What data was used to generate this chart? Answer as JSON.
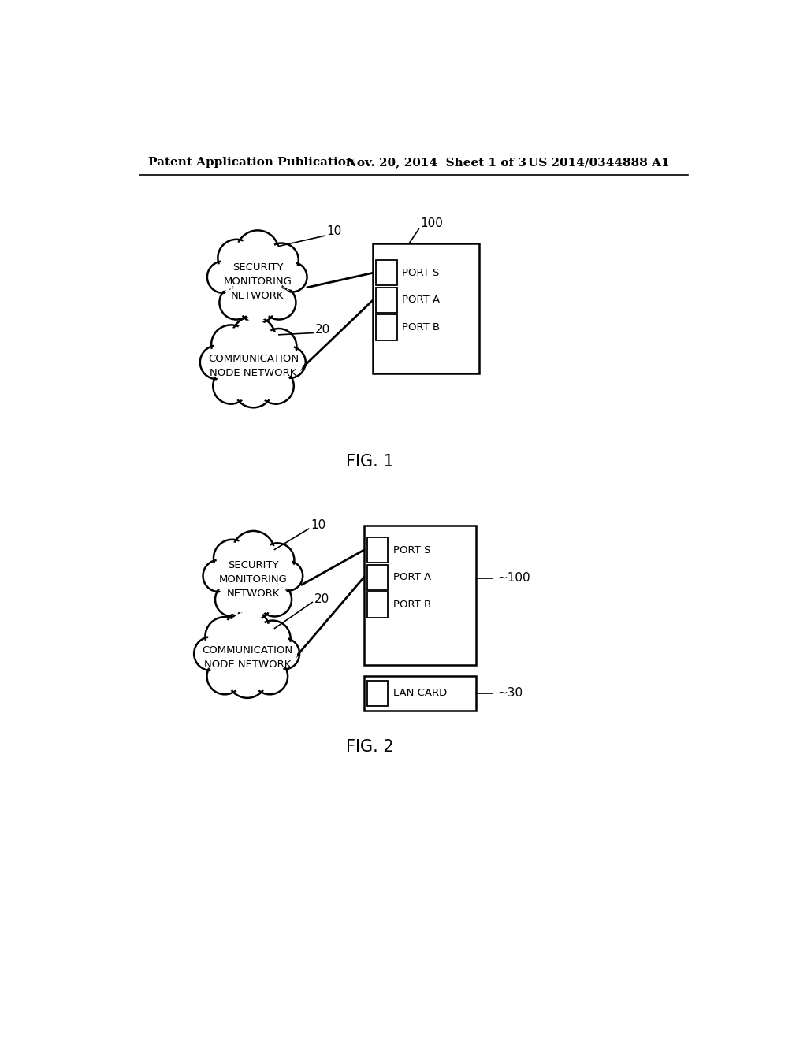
{
  "header_left": "Patent Application Publication",
  "header_mid": "Nov. 20, 2014  Sheet 1 of 3",
  "header_right": "US 2014/0344888 A1",
  "fig1_label": "FIG. 1",
  "fig2_label": "FIG. 2",
  "cloud1_text": "SECURITY\nMONITORING\nNETWORK",
  "cloud2_text": "COMMUNICATION\nNODE NETWORK",
  "label_10": "10",
  "label_20": "20",
  "label_100_fig1": "100",
  "label_100_fig2": "~100",
  "label_30": "~30",
  "port_s": "PORT S",
  "port_a": "PORT A",
  "port_b": "PORT B",
  "lan_card": "LAN CARD",
  "bg_color": "#ffffff",
  "line_color": "#000000",
  "text_color": "#000000",
  "font_size_header": 11,
  "font_size_label": 11,
  "font_size_port": 10,
  "font_size_fig": 15
}
